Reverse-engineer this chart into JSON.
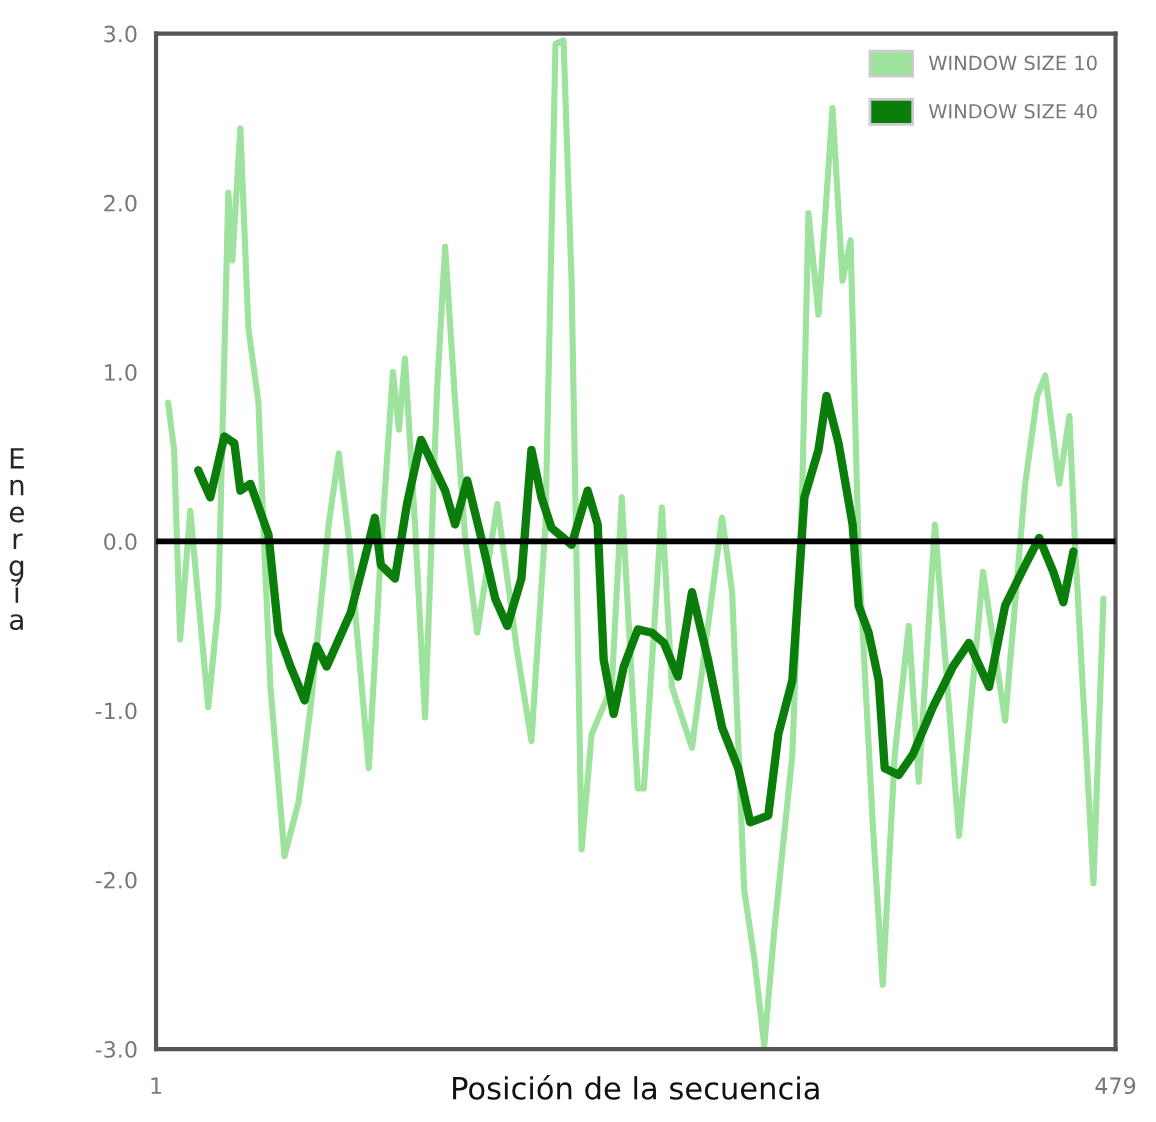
{
  "chart_data": {
    "type": "line",
    "xlabel": "Posición de la secuencia",
    "ylabel": "Energía",
    "xlim": [
      1,
      479
    ],
    "xticks": [
      1,
      479
    ],
    "ylim": [
      -3,
      3
    ],
    "yticks": [
      {
        "value": -3,
        "label": "-3.0"
      },
      {
        "value": -2,
        "label": "-2.0"
      },
      {
        "value": -1,
        "label": "-1.0"
      },
      {
        "value": 0,
        "label": "0.0"
      },
      {
        "value": 1,
        "label": "1.0"
      },
      {
        "value": 2,
        "label": "2.0"
      },
      {
        "value": 3,
        "label": "3.0"
      }
    ],
    "grid": false,
    "legend": "top right",
    "marker": "none",
    "line_style": "solid",
    "ref_lines": [
      {
        "axis": "y",
        "value": 0,
        "color": "#000000"
      }
    ],
    "series": [
      {
        "name": "WINDOW SIZE 10",
        "color": "#9de39d",
        "x": [
          7,
          10,
          13,
          18,
          27,
          32,
          37,
          39,
          43,
          47,
          52,
          55,
          58,
          65,
          72,
          78,
          87,
          92,
          97,
          107,
          113,
          119,
          122,
          125,
          130,
          135,
          141,
          145,
          150,
          155,
          161,
          171,
          181,
          188,
          195,
          200,
          204,
          208,
          213,
          218,
          228,
          233,
          241,
          244,
          253,
          258,
          268,
          283,
          288,
          294,
          299,
          304,
          309,
          318,
          323,
          326,
          331,
          338,
          343,
          347,
          351,
          358,
          363,
          369,
          376,
          381,
          389,
          401,
          413,
          424,
          434,
          440,
          444,
          451,
          456,
          459,
          468,
          473
        ],
        "values": [
          0.82,
          0.54,
          -0.58,
          0.18,
          -0.98,
          -0.38,
          2.06,
          1.66,
          2.44,
          1.26,
          0.82,
          -0.06,
          -0.86,
          -1.86,
          -1.54,
          -0.98,
          0.1,
          0.52,
          0.02,
          -1.34,
          -0.06,
          1.0,
          0.66,
          1.08,
          0.1,
          -1.04,
          0.9,
          1.74,
          0.82,
          0.02,
          -0.54,
          0.22,
          -0.66,
          -1.18,
          0.1,
          2.94,
          2.96,
          1.54,
          -1.82,
          -1.14,
          -0.86,
          0.26,
          -1.46,
          -1.46,
          0.2,
          -0.86,
          -1.22,
          0.14,
          -0.3,
          -2.06,
          -2.46,
          -2.98,
          -2.3,
          -1.26,
          0.34,
          1.94,
          1.34,
          2.56,
          1.54,
          1.78,
          -0.06,
          -1.66,
          -2.62,
          -1.26,
          -0.5,
          -1.42,
          0.1,
          -1.74,
          -0.18,
          -1.06,
          0.34,
          0.86,
          0.98,
          0.34,
          0.74,
          -0.06,
          -2.02,
          -0.34
        ]
      },
      {
        "name": "WINDOW SIZE 40",
        "color": "#0b7d0b",
        "x": [
          22,
          28,
          35,
          40,
          43,
          48,
          57,
          62,
          68,
          75,
          81,
          86,
          98,
          105,
          110,
          113,
          120,
          126,
          133,
          145,
          150,
          156,
          163,
          170,
          176,
          183,
          188,
          193,
          198,
          208,
          216,
          221,
          224,
          229,
          234,
          241,
          248,
          254,
          261,
          268,
          276,
          283,
          291,
          297,
          306,
          311,
          318,
          324,
          331,
          335,
          341,
          348,
          351,
          356,
          361,
          364,
          371,
          378,
          388,
          398,
          406,
          416,
          424,
          434,
          441,
          448,
          453,
          458
        ],
        "values": [
          0.42,
          0.26,
          0.62,
          0.58,
          0.3,
          0.34,
          0.04,
          -0.54,
          -0.74,
          -0.94,
          -0.62,
          -0.74,
          -0.42,
          -0.1,
          0.14,
          -0.14,
          -0.22,
          0.22,
          0.6,
          0.3,
          0.1,
          0.36,
          0.02,
          -0.34,
          -0.5,
          -0.22,
          0.54,
          0.26,
          0.08,
          -0.02,
          0.3,
          0.1,
          -0.7,
          -1.02,
          -0.74,
          -0.52,
          -0.54,
          -0.6,
          -0.8,
          -0.3,
          -0.7,
          -1.1,
          -1.34,
          -1.66,
          -1.62,
          -1.14,
          -0.82,
          0.26,
          0.54,
          0.86,
          0.58,
          0.1,
          -0.38,
          -0.54,
          -0.82,
          -1.34,
          -1.38,
          -1.26,
          -0.98,
          -0.74,
          -0.6,
          -0.86,
          -0.38,
          -0.14,
          0.02,
          -0.18,
          -0.36,
          -0.06
        ]
      }
    ]
  }
}
